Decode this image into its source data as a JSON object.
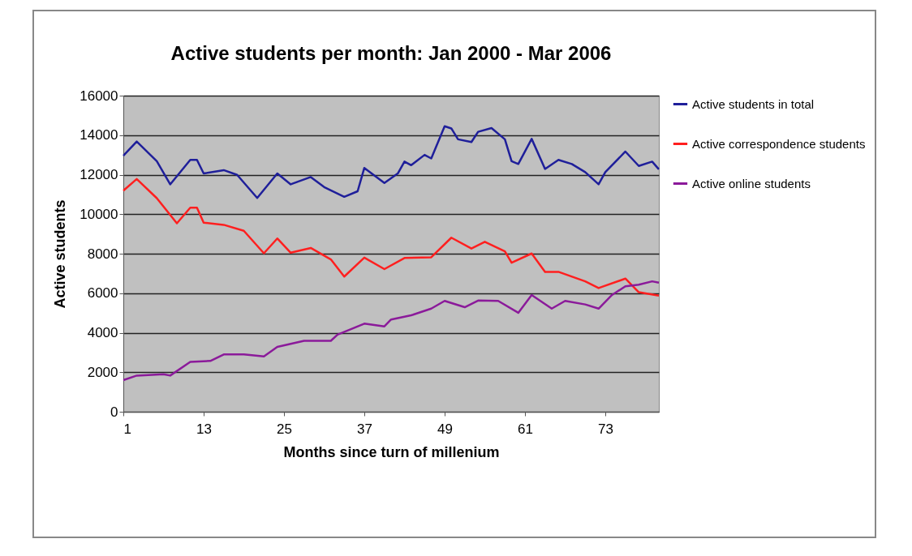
{
  "chart_data": {
    "type": "line",
    "title": "Active students per month: Jan 2000 - Mar 2006",
    "xlabel": "Months since turn of millenium",
    "ylabel": "Active students",
    "xlim": [
      1,
      81
    ],
    "xticks": [
      1,
      13,
      25,
      37,
      49,
      61,
      73
    ],
    "ylim": [
      0,
      16000
    ],
    "yticks": [
      0,
      2000,
      4000,
      6000,
      8000,
      10000,
      12000,
      14000,
      16000
    ],
    "grid": "y",
    "legend": "right",
    "marker": "none",
    "line_style": "solid",
    "series": [
      {
        "name": "Active students in total",
        "color": "#1f1f9a",
        "x": [
          1,
          3,
          6,
          8,
          11,
          12,
          13,
          16,
          18,
          21,
          24,
          26,
          29,
          31,
          34,
          36,
          37,
          40,
          42,
          43,
          44,
          46,
          47,
          49,
          50,
          51,
          53,
          54,
          56,
          58,
          59,
          60,
          62,
          64,
          66,
          68,
          70,
          72,
          73,
          76,
          78,
          80,
          81
        ],
        "values": [
          12960,
          13680,
          12680,
          11510,
          12750,
          12750,
          12060,
          12230,
          11990,
          10820,
          12060,
          11510,
          11880,
          11370,
          10880,
          11160,
          12340,
          11580,
          12060,
          12660,
          12480,
          13000,
          12820,
          14450,
          14340,
          13790,
          13650,
          14170,
          14360,
          13790,
          12680,
          12540,
          13810,
          12290,
          12750,
          12540,
          12130,
          11510,
          12130,
          13170,
          12440,
          12660,
          12270
        ]
      },
      {
        "name": "Active correspondence students",
        "color": "#ff1f1f",
        "x": [
          1,
          3,
          6,
          9,
          11,
          12,
          13,
          16,
          19,
          22,
          24,
          26,
          29,
          32,
          34,
          37,
          40,
          43,
          47,
          50,
          53,
          55,
          58,
          59,
          62,
          64,
          66,
          70,
          72,
          76,
          78,
          81
        ],
        "values": [
          11190,
          11780,
          10810,
          9540,
          10330,
          10330,
          9570,
          9460,
          9160,
          8020,
          8770,
          8050,
          8290,
          7710,
          6840,
          7800,
          7220,
          7780,
          7820,
          8810,
          8260,
          8600,
          8120,
          7540,
          8010,
          7080,
          7080,
          6600,
          6260,
          6740,
          6050,
          5880
        ]
      },
      {
        "name": "Active online students",
        "color": "#8b1a9a",
        "x": [
          1,
          3,
          7,
          8,
          11,
          14,
          16,
          19,
          22,
          24,
          28,
          32,
          33,
          37,
          40,
          41,
          44,
          47,
          49,
          52,
          54,
          57,
          60,
          62,
          65,
          67,
          70,
          72,
          74,
          76,
          78,
          80,
          81
        ],
        "values": [
          1600,
          1830,
          1900,
          1830,
          2520,
          2570,
          2900,
          2900,
          2800,
          3280,
          3590,
          3590,
          3900,
          4460,
          4320,
          4670,
          4880,
          5220,
          5610,
          5290,
          5630,
          5610,
          5010,
          5910,
          5220,
          5610,
          5430,
          5220,
          5910,
          6350,
          6430,
          6600,
          6530
        ]
      }
    ]
  }
}
